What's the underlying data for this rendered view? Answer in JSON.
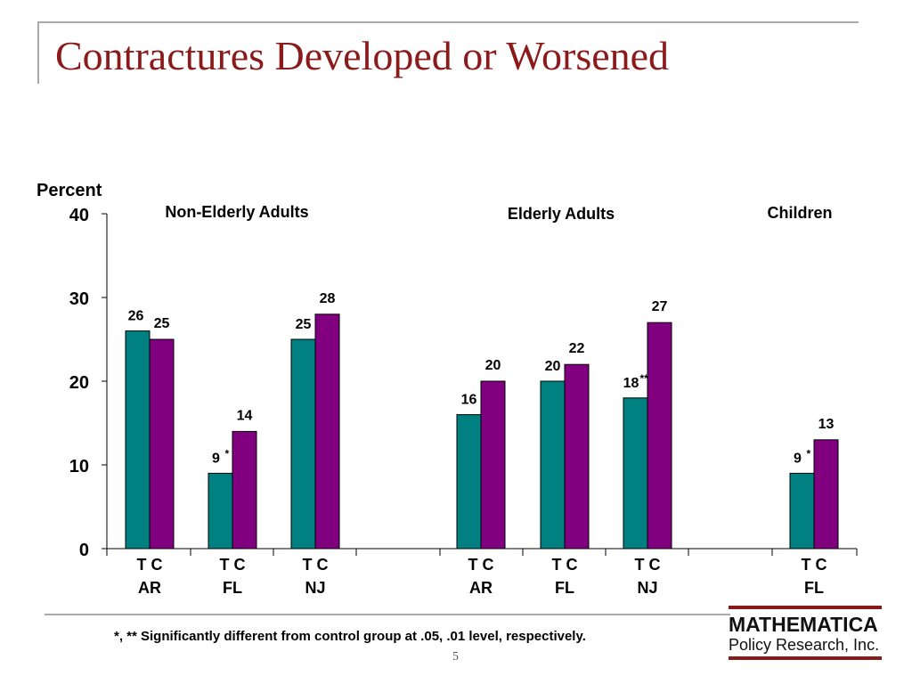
{
  "slide": {
    "title": "Contractures Developed or Worsened",
    "footnote": "*, ** Significantly different from control group at  .05, .01 level, respectively.",
    "page_number": "5"
  },
  "logo": {
    "name": "MATHEMATICA",
    "subtitle": "Policy Research, Inc."
  },
  "colors": {
    "treatment": "#008080",
    "control": "#800080",
    "title": "#8b1a1a"
  },
  "chart_data": {
    "type": "bar",
    "ylabel": "Percent",
    "ylim": [
      0,
      40
    ],
    "yticks": [
      0,
      10,
      20,
      30,
      40
    ],
    "group_labels": [
      "Non-Elderly Adults",
      "Elderly Adults",
      "Children"
    ],
    "series": [
      {
        "name": "T",
        "role": "treatment"
      },
      {
        "name": "C",
        "role": "control"
      }
    ],
    "bars": [
      {
        "state": "AR",
        "group": "Non-Elderly Adults",
        "T": 26,
        "C": 25,
        "sig": ""
      },
      {
        "state": "FL",
        "group": "Non-Elderly Adults",
        "T": 9,
        "C": 14,
        "sig": "*"
      },
      {
        "state": "NJ",
        "group": "Non-Elderly Adults",
        "T": 25,
        "C": 28,
        "sig": ""
      },
      {
        "state": "AR",
        "group": "Elderly Adults",
        "T": 16,
        "C": 20,
        "sig": ""
      },
      {
        "state": "FL",
        "group": "Elderly Adults",
        "T": 20,
        "C": 22,
        "sig": ""
      },
      {
        "state": "NJ",
        "group": "Elderly Adults",
        "T": 18,
        "C": 27,
        "sig": "**"
      },
      {
        "state": "FL",
        "group": "Children",
        "T": 9,
        "C": 13,
        "sig": "*"
      }
    ]
  }
}
